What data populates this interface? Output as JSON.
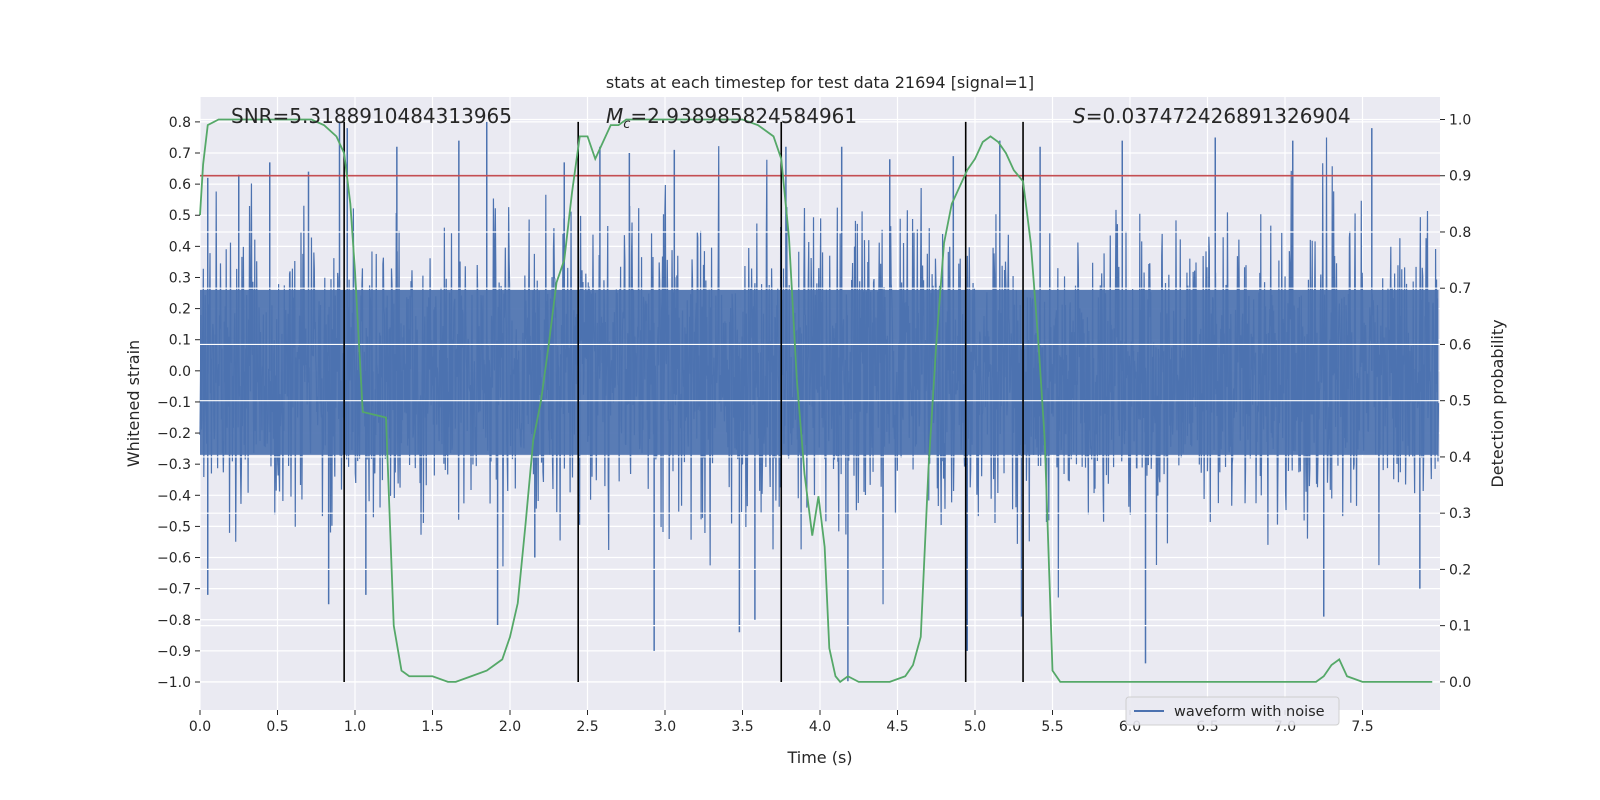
{
  "chart_data": {
    "type": "line",
    "title": "stats at each timestep for test data 21694 [signal=1]",
    "xlabel": "Time (s)",
    "ylabel": "Whitened strain",
    "y2label": "Detection probability",
    "xlim": [
      0.0,
      8.0
    ],
    "ylim": [
      -1.09,
      0.88
    ],
    "y2lim": [
      -0.05,
      1.04
    ],
    "x_ticks": [
      "0.0",
      "0.5",
      "1.0",
      "1.5",
      "2.0",
      "2.5",
      "3.0",
      "3.5",
      "4.0",
      "4.5",
      "5.0",
      "5.5",
      "6.0",
      "6.5",
      "7.0",
      "7.5"
    ],
    "y_ticks": [
      "0.8",
      "0.7",
      "0.6",
      "0.5",
      "0.4",
      "0.3",
      "0.2",
      "0.1",
      "0.0",
      "-0.1",
      "-0.2",
      "-0.3",
      "-0.4",
      "-0.5",
      "-0.6",
      "-0.7",
      "-0.8",
      "-0.9",
      "-1.0"
    ],
    "y2_ticks": [
      "1.0",
      "0.9",
      "0.8",
      "0.7",
      "0.6",
      "0.5",
      "0.4",
      "0.3",
      "0.2",
      "0.1",
      "0.0"
    ],
    "grid": true,
    "legend": {
      "position": "bottom-right",
      "entries": [
        "waveform with noise"
      ]
    },
    "annotations": {
      "snr": "SNR=5.3188910484313965",
      "mc_symbol": "M",
      "mc_sub": "c",
      "mc_value": "=2.938985824584961",
      "s_symbol": "S",
      "s_value": "=0.037472426891326904"
    },
    "threshold": {
      "axis": "y2",
      "value": 0.9,
      "color": "#c44e52"
    },
    "vertical_lines": [
      {
        "x": 0.93,
        "ymin": -1.0,
        "ymax": 0.8
      },
      {
        "x": 2.44,
        "ymin": -1.0,
        "ymax": 0.8
      },
      {
        "x": 3.75,
        "ymin": -1.0,
        "ymax": 0.8
      },
      {
        "x": 4.94,
        "ymin": -1.0,
        "ymax": 0.8
      },
      {
        "x": 5.31,
        "ymin": -1.0,
        "ymax": 0.8
      }
    ],
    "waveform": {
      "name": "waveform with noise",
      "color": "#4c72b0",
      "envelope_typical": 0.4,
      "spikes": [
        {
          "x": 0.05,
          "y": 0.62
        },
        {
          "x": 0.05,
          "y": -0.72
        },
        {
          "x": 0.25,
          "y": 0.63
        },
        {
          "x": 0.45,
          "y": 0.67
        },
        {
          "x": 0.7,
          "y": 0.64
        },
        {
          "x": 0.83,
          "y": -0.75
        },
        {
          "x": 0.9,
          "y": 0.8
        },
        {
          "x": 0.95,
          "y": 0.78
        },
        {
          "x": 1.07,
          "y": -0.72
        },
        {
          "x": 1.27,
          "y": 0.72
        },
        {
          "x": 1.67,
          "y": 0.74
        },
        {
          "x": 1.85,
          "y": 0.8
        },
        {
          "x": 1.92,
          "y": -0.82
        },
        {
          "x": 2.16,
          "y": -0.6
        },
        {
          "x": 2.35,
          "y": 0.67
        },
        {
          "x": 2.58,
          "y": 0.72
        },
        {
          "x": 2.77,
          "y": 0.7
        },
        {
          "x": 2.93,
          "y": -0.9
        },
        {
          "x": 3.06,
          "y": 0.71
        },
        {
          "x": 3.48,
          "y": -0.84
        },
        {
          "x": 3.58,
          "y": -0.8
        },
        {
          "x": 3.78,
          "y": 0.72
        },
        {
          "x": 4.14,
          "y": 0.72
        },
        {
          "x": 4.18,
          "y": -1.0
        },
        {
          "x": 4.45,
          "y": 0.68
        },
        {
          "x": 4.86,
          "y": 0.69
        },
        {
          "x": 4.95,
          "y": -0.9
        },
        {
          "x": 5.16,
          "y": 0.74
        },
        {
          "x": 5.3,
          "y": -0.79
        },
        {
          "x": 5.42,
          "y": 0.72
        },
        {
          "x": 5.95,
          "y": 0.74
        },
        {
          "x": 6.1,
          "y": -0.94
        },
        {
          "x": 6.55,
          "y": 0.75
        },
        {
          "x": 7.05,
          "y": 0.74
        },
        {
          "x": 7.25,
          "y": -0.79
        },
        {
          "x": 7.56,
          "y": 0.78
        },
        {
          "x": 7.87,
          "y": -0.7
        }
      ]
    },
    "probability": {
      "color": "#55a868",
      "x": [
        0.0,
        0.02,
        0.05,
        0.12,
        0.2,
        0.4,
        0.6,
        0.72,
        0.8,
        0.88,
        0.93,
        0.97,
        1.0,
        1.05,
        1.2,
        1.25,
        1.3,
        1.35,
        1.4,
        1.5,
        1.6,
        1.65,
        1.75,
        1.85,
        1.9,
        1.95,
        2.0,
        2.05,
        2.1,
        2.15,
        2.2,
        2.25,
        2.3,
        2.35,
        2.4,
        2.45,
        2.5,
        2.55,
        2.6,
        2.65,
        2.7,
        2.75,
        2.8,
        2.85,
        2.95,
        3.05,
        3.2,
        3.35,
        3.5,
        3.6,
        3.7,
        3.75,
        3.8,
        3.85,
        3.9,
        3.95,
        3.99,
        4.03,
        4.06,
        4.1,
        4.13,
        4.18,
        4.25,
        4.35,
        4.45,
        4.55,
        4.6,
        4.65,
        4.7,
        4.75,
        4.8,
        4.85,
        4.9,
        4.95,
        5.0,
        5.05,
        5.1,
        5.15,
        5.2,
        5.25,
        5.31,
        5.36,
        5.41,
        5.45,
        5.5,
        5.55,
        5.6,
        5.7,
        5.9,
        6.1,
        6.3,
        6.5,
        6.7,
        6.9,
        7.1,
        7.2,
        7.25,
        7.3,
        7.35,
        7.4,
        7.5,
        7.6,
        7.75,
        7.95
      ],
      "y": [
        0.83,
        0.92,
        0.99,
        1.0,
        1.0,
        1.0,
        1.0,
        1.0,
        0.99,
        0.97,
        0.94,
        0.85,
        0.73,
        0.48,
        0.47,
        0.1,
        0.02,
        0.01,
        0.01,
        0.01,
        0.0,
        0.0,
        0.01,
        0.02,
        0.03,
        0.04,
        0.08,
        0.14,
        0.28,
        0.43,
        0.5,
        0.6,
        0.71,
        0.75,
        0.87,
        0.97,
        0.97,
        0.93,
        0.96,
        0.99,
        0.99,
        1.0,
        1.0,
        1.0,
        1.0,
        1.0,
        1.0,
        1.0,
        1.0,
        0.99,
        0.97,
        0.93,
        0.79,
        0.54,
        0.37,
        0.26,
        0.33,
        0.24,
        0.06,
        0.01,
        0.0,
        0.01,
        0.0,
        0.0,
        0.0,
        0.01,
        0.03,
        0.08,
        0.38,
        0.6,
        0.78,
        0.85,
        0.88,
        0.91,
        0.93,
        0.96,
        0.97,
        0.96,
        0.94,
        0.91,
        0.89,
        0.78,
        0.6,
        0.43,
        0.02,
        0.0,
        0.0,
        0.0,
        0.0,
        0.0,
        0.0,
        0.0,
        0.0,
        0.0,
        0.0,
        0.0,
        0.01,
        0.03,
        0.04,
        0.01,
        0.0,
        0.0,
        0.0,
        0.0
      ]
    }
  }
}
